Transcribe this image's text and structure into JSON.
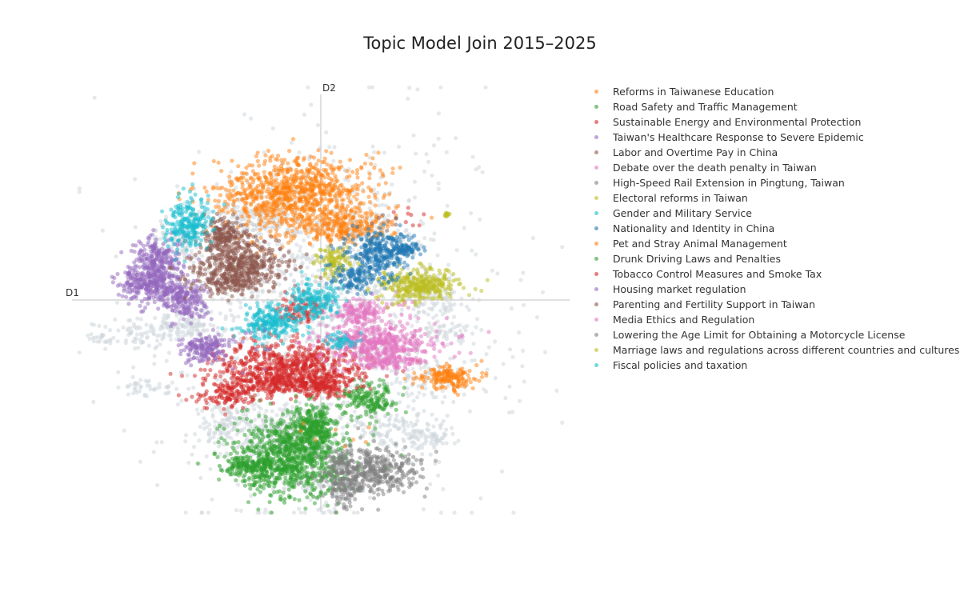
{
  "chart_data": {
    "type": "scatter",
    "title": "Topic Model Join 2015–2025",
    "xlabel": "D1",
    "ylabel": "D2",
    "xlim": [
      -10,
      10
    ],
    "ylim": [
      -9,
      9
    ],
    "grid": false,
    "legend_placement": "right",
    "background_color": "#d0d7dc",
    "series": [
      {
        "name": "Reforms in Taiwanese Education",
        "color": "#ff7f0e",
        "clusters": [
          {
            "x": -1.1,
            "y": 4.2,
            "sx": 1.5,
            "sy": 0.8,
            "n": 950
          },
          {
            "x": 1.2,
            "y": 3.0,
            "sx": 0.9,
            "sy": 0.35,
            "n": 200
          },
          {
            "x": 5.1,
            "y": -3.1,
            "sx": 0.6,
            "sy": 0.2,
            "n": 150
          },
          {
            "x": 5.3,
            "y": -3.5,
            "sx": 0.3,
            "sy": 0.15,
            "n": 25
          }
        ]
      },
      {
        "name": "Road Safety and Traffic Management",
        "color": "#2ca02c",
        "clusters": [
          {
            "x": -1.2,
            "y": -6.4,
            "sx": 1.2,
            "sy": 0.8,
            "n": 900
          },
          {
            "x": -0.4,
            "y": -5.2,
            "sx": 0.5,
            "sy": 0.45,
            "n": 260
          },
          {
            "x": -2.9,
            "y": -6.8,
            "sx": 0.5,
            "sy": 0.2,
            "n": 120
          },
          {
            "x": 1.9,
            "y": -4.1,
            "sx": 0.6,
            "sy": 0.35,
            "n": 170
          }
        ]
      },
      {
        "name": "Sustainable Energy and Environmental Protection",
        "color": "#d62728",
        "clusters": [
          {
            "x": -1.2,
            "y": -2.7,
            "sx": 1.5,
            "sy": 0.55,
            "n": 650
          },
          {
            "x": -1.8,
            "y": -3.4,
            "sx": 1.4,
            "sy": 0.35,
            "n": 260
          },
          {
            "x": 0.1,
            "y": -3.5,
            "sx": 0.4,
            "sy": 0.25,
            "n": 120
          },
          {
            "x": -3.8,
            "y": -3.9,
            "sx": 0.6,
            "sy": 0.25,
            "n": 110
          },
          {
            "x": -0.9,
            "y": -0.4,
            "sx": 0.5,
            "sy": 0.25,
            "n": 90
          }
        ]
      },
      {
        "name": "Taiwan's Healthcare Response to Severe Epidemic",
        "color": "#9467bd",
        "clusters": [
          {
            "x": -6.8,
            "y": 0.7,
            "sx": 0.6,
            "sy": 0.4,
            "n": 330
          },
          {
            "x": -6.6,
            "y": 1.7,
            "sx": 0.45,
            "sy": 0.4,
            "n": 200
          },
          {
            "x": -5.5,
            "y": 0.0,
            "sx": 0.45,
            "sy": 0.4,
            "n": 200
          },
          {
            "x": -4.7,
            "y": -2.0,
            "sx": 0.45,
            "sy": 0.3,
            "n": 170
          }
        ]
      },
      {
        "name": "Labor and Overtime Pay in China",
        "color": "#8c564b",
        "clusters": [
          {
            "x": -3.3,
            "y": 1.6,
            "sx": 0.9,
            "sy": 0.5,
            "n": 400
          },
          {
            "x": -3.9,
            "y": 2.7,
            "sx": 0.35,
            "sy": 0.35,
            "n": 160
          },
          {
            "x": -3.6,
            "y": 0.8,
            "sx": 0.8,
            "sy": 0.3,
            "n": 200
          }
        ]
      },
      {
        "name": "Debate over the death penalty in Taiwan",
        "color": "#e377c2",
        "clusters": [
          {
            "x": 2.4,
            "y": -1.8,
            "sx": 1.2,
            "sy": 0.4,
            "n": 450
          },
          {
            "x": 1.6,
            "y": -0.5,
            "sx": 0.6,
            "sy": 0.3,
            "n": 170
          },
          {
            "x": 2.6,
            "y": -2.5,
            "sx": 0.6,
            "sy": 0.2,
            "n": 120
          }
        ]
      },
      {
        "name": "High-Speed Rail Extension in Pingtung, Taiwan",
        "color": "#7f7f7f",
        "clusters": [
          {
            "x": 2.2,
            "y": -7.0,
            "sx": 0.9,
            "sy": 0.45,
            "n": 380
          },
          {
            "x": 0.9,
            "y": -7.6,
            "sx": 0.35,
            "sy": 0.45,
            "n": 120
          },
          {
            "x": 0.9,
            "y": -6.6,
            "sx": 0.3,
            "sy": 0.25,
            "n": 50
          }
        ]
      },
      {
        "name": "Electoral reforms in Taiwan",
        "color": "#bcbd22",
        "clusters": [
          {
            "x": 3.9,
            "y": 0.6,
            "sx": 0.75,
            "sy": 0.35,
            "n": 340
          },
          {
            "x": 0.6,
            "y": 1.6,
            "sx": 0.35,
            "sy": 0.3,
            "n": 110
          },
          {
            "x": 5.1,
            "y": 3.5,
            "sx": 0.08,
            "sy": 0.05,
            "n": 10
          }
        ]
      },
      {
        "name": "Gender and Military Service",
        "color": "#17becf",
        "clusters": [
          {
            "x": -5.3,
            "y": 3.1,
            "sx": 0.45,
            "sy": 0.55,
            "n": 230
          },
          {
            "x": -2.1,
            "y": -0.9,
            "sx": 0.6,
            "sy": 0.35,
            "n": 230
          },
          {
            "x": -0.3,
            "y": 0.0,
            "sx": 0.5,
            "sy": 0.35,
            "n": 180
          },
          {
            "x": 0.9,
            "y": -1.7,
            "sx": 0.3,
            "sy": 0.15,
            "n": 40
          }
        ]
      },
      {
        "name": "Nationality and Identity in China",
        "color": "#1f77b4",
        "clusters": [
          {
            "x": 2.4,
            "y": 2.0,
            "sx": 0.7,
            "sy": 0.45,
            "n": 300
          },
          {
            "x": 1.5,
            "y": 0.9,
            "sx": 0.5,
            "sy": 0.3,
            "n": 130
          },
          {
            "x": 3.5,
            "y": 2.1,
            "sx": 0.3,
            "sy": 0.12,
            "n": 50
          }
        ]
      },
      {
        "name": "Pet and Stray Animal Management",
        "color": "#ff7f0e",
        "clusters": [
          {
            "x": 0.6,
            "y": -5.6,
            "sx": 0.8,
            "sy": 0.3,
            "n": 8
          }
        ]
      },
      {
        "name": "Drunk Driving Laws and Penalties",
        "color": "#2ca02c",
        "clusters": [
          {
            "x": -3.5,
            "y": -6.8,
            "sx": 0.2,
            "sy": 0.1,
            "n": 6
          }
        ]
      },
      {
        "name": "Tobacco Control Measures and Smoke Tax",
        "color": "#d62728",
        "clusters": [
          {
            "x": 3.4,
            "y": 3.3,
            "sx": 0.4,
            "sy": 0.3,
            "n": 8
          }
        ]
      },
      {
        "name": "Housing market regulation",
        "color": "#9467bd",
        "clusters": [
          {
            "x": -3.0,
            "y": -1.8,
            "sx": 0.8,
            "sy": 0.4,
            "n": 12
          }
        ]
      },
      {
        "name": "Parenting and Fertility Support in Taiwan",
        "color": "#8c564b",
        "clusters": [
          {
            "x": 2.6,
            "y": 3.2,
            "sx": 0.3,
            "sy": 0.2,
            "n": 8
          }
        ]
      },
      {
        "name": "Media Ethics and Regulation",
        "color": "#e377c2",
        "clusters": [
          {
            "x": 3.5,
            "y": -0.2,
            "sx": 0.3,
            "sy": 0.2,
            "n": 6
          }
        ]
      },
      {
        "name": "Lowering the Age Limit for Obtaining a Motorcycle License",
        "color": "#7f7f7f",
        "clusters": [
          {
            "x": 0.9,
            "y": -6.2,
            "sx": 0.3,
            "sy": 0.2,
            "n": 6
          }
        ]
      },
      {
        "name": "Marriage laws and regulations across different countries and cultures",
        "color": "#bcbd22",
        "clusters": [
          {
            "x": 5.1,
            "y": 3.5,
            "sx": 0.05,
            "sy": 0.05,
            "n": 4
          }
        ]
      },
      {
        "name": "Fiscal policies and taxation",
        "color": "#17becf",
        "clusters": [
          {
            "x": 0.7,
            "y": -1.6,
            "sx": 0.4,
            "sy": 0.2,
            "n": 10
          }
        ]
      }
    ],
    "background_clusters": [
      {
        "x": 0,
        "y": -1,
        "sx": 3.2,
        "sy": 3.6,
        "n": 1400
      },
      {
        "x": -2.5,
        "y": 3.3,
        "sx": 1.0,
        "sy": 0.5,
        "n": 160
      },
      {
        "x": -5.5,
        "y": -1.0,
        "sx": 1.0,
        "sy": 0.3,
        "n": 120
      },
      {
        "x": -6.8,
        "y": -3.5,
        "sx": 0.6,
        "sy": 0.2,
        "n": 40
      },
      {
        "x": -7.5,
        "y": -1.5,
        "sx": 1.0,
        "sy": 0.25,
        "n": 60
      },
      {
        "x": -8.6,
        "y": -1.7,
        "sx": 0.3,
        "sy": 0.1,
        "n": 15
      },
      {
        "x": 4.4,
        "y": -5.7,
        "sx": 0.5,
        "sy": 0.25,
        "n": 60
      },
      {
        "x": 2.8,
        "y": -5.3,
        "sx": 0.8,
        "sy": 0.35,
        "n": 100
      },
      {
        "x": 5.0,
        "y": -1.3,
        "sx": 0.6,
        "sy": 0.2,
        "n": 50
      },
      {
        "x": 4.5,
        "y": 0.0,
        "sx": 0.6,
        "sy": 0.5,
        "n": 80
      },
      {
        "x": 4.0,
        "y": -3.0,
        "sx": 0.7,
        "sy": 0.5,
        "n": 60
      },
      {
        "x": 1.5,
        "y": 3.0,
        "sx": 0.8,
        "sy": 0.3,
        "n": 70
      },
      {
        "x": -2.0,
        "y": -5.5,
        "sx": 1.4,
        "sy": 0.6,
        "n": 260
      },
      {
        "x": -0.5,
        "y": -7.5,
        "sx": 0.8,
        "sy": 0.4,
        "n": 60
      },
      {
        "x": -3.8,
        "y": -5.0,
        "sx": 0.5,
        "sy": 0.4,
        "n": 60
      },
      {
        "x": -5.9,
        "y": 2.3,
        "sx": 0.5,
        "sy": 0.5,
        "n": 80
      }
    ]
  },
  "legend": {
    "items": [
      "Reforms in Taiwanese Education",
      "Road Safety and Traffic Management",
      "Sustainable Energy and Environmental Protection",
      "Taiwan's Healthcare Response to Severe Epidemic",
      "Labor and Overtime Pay in China",
      "Debate over the death penalty in Taiwan",
      "High-Speed Rail Extension in Pingtung, Taiwan",
      "Electoral reforms in Taiwan",
      "Gender and Military Service",
      "Nationality and Identity in China",
      "Pet and Stray Animal Management",
      "Drunk Driving Laws and Penalties",
      "Tobacco Control Measures and Smoke Tax",
      "Housing market regulation",
      "Parenting and Fertility Support in Taiwan",
      "Media Ethics and Regulation",
      "Lowering the Age Limit for Obtaining a Motorcycle License",
      "Marriage laws and regulations across different countries and cultures",
      "Fiscal policies and taxation"
    ]
  }
}
